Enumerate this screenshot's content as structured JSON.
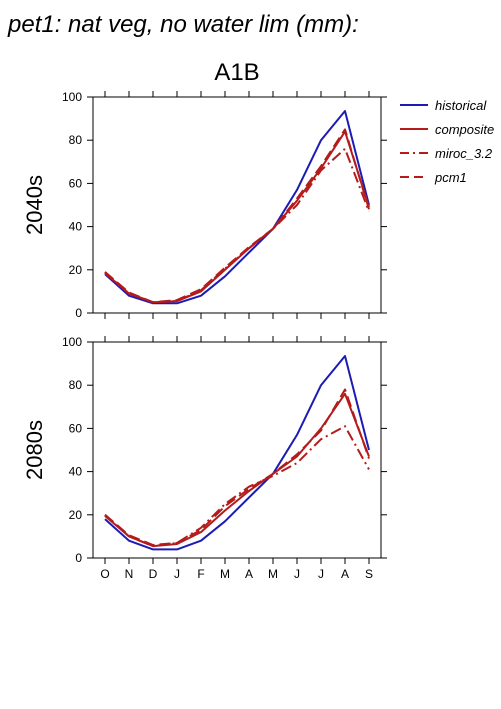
{
  "figure_title": "pet1: nat veg, no water lim (mm):",
  "chart_data": [
    {
      "type": "line",
      "title": "A1B",
      "ylabel": "2040s",
      "xlabel": "",
      "categories": [
        "O",
        "N",
        "D",
        "J",
        "F",
        "M",
        "A",
        "M",
        "J",
        "J",
        "A",
        "S"
      ],
      "ylim": [
        0,
        100
      ],
      "yticks": [
        0,
        20,
        40,
        60,
        80,
        100
      ],
      "grid": false,
      "legend_position": "right",
      "series": [
        {
          "name": "historical",
          "color": "#1c1cb4",
          "style": "solid",
          "values": [
            18,
            8,
            4.5,
            4.5,
            8,
            17,
            28,
            39,
            57,
            80,
            93.5,
            50
          ]
        },
        {
          "name": "composite",
          "color": "#b41c1c",
          "style": "solid",
          "values": [
            18.5,
            9,
            5,
            5.5,
            10,
            20,
            30,
            39,
            52,
            67,
            84,
            49
          ]
        },
        {
          "name": "miroc_3.2",
          "color": "#b41c1c",
          "style": "dashdot",
          "values": [
            19,
            9,
            5,
            5.5,
            10.5,
            20.5,
            30,
            39,
            50,
            66,
            76,
            47
          ]
        },
        {
          "name": "pcm1",
          "color": "#b41c1c",
          "style": "dash",
          "values": [
            19,
            9.5,
            5,
            6,
            11,
            21,
            30.5,
            39,
            53,
            68,
            85,
            48
          ]
        }
      ]
    },
    {
      "type": "line",
      "title": "",
      "ylabel": "2080s",
      "xlabel": "",
      "categories": [
        "O",
        "N",
        "D",
        "J",
        "F",
        "M",
        "A",
        "M",
        "J",
        "J",
        "A",
        "S"
      ],
      "ylim": [
        0,
        100
      ],
      "yticks": [
        0,
        20,
        40,
        60,
        80,
        100
      ],
      "grid": false,
      "series": [
        {
          "name": "historical",
          "color": "#1c1cb4",
          "style": "solid",
          "values": [
            18,
            8,
            4,
            4,
            8,
            17,
            28,
            39,
            57,
            80,
            93.5,
            50
          ]
        },
        {
          "name": "composite",
          "color": "#b41c1c",
          "style": "solid",
          "values": [
            19.5,
            10,
            5.5,
            6.5,
            12,
            22,
            31,
            39,
            47,
            60,
            76,
            47
          ]
        },
        {
          "name": "miroc_3.2",
          "color": "#b41c1c",
          "style": "dashdot",
          "values": [
            20,
            10,
            5.5,
            7,
            14,
            25,
            33,
            38,
            44,
            55,
            61,
            41
          ]
        },
        {
          "name": "pcm1",
          "color": "#b41c1c",
          "style": "dash",
          "values": [
            20,
            10.5,
            6,
            7,
            13,
            24,
            32,
            39,
            48,
            59,
            78,
            46
          ]
        }
      ]
    }
  ]
}
